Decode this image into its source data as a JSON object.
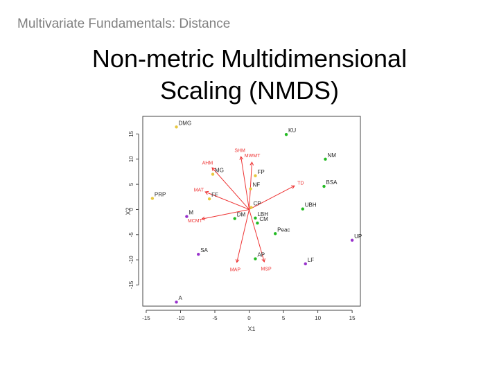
{
  "slide": {
    "header": "Multivariate Fundamentals: Distance",
    "title_lines": [
      "Non-metric Multidimensional",
      "Scaling (NMDS)"
    ]
  },
  "chart_data": {
    "type": "scatter",
    "xlabel": "X1",
    "ylabel": "X2",
    "xlim": [
      -15.5,
      16.2
    ],
    "ylim": [
      -19.2,
      18.5
    ],
    "xticks": [
      -15,
      -10,
      -5,
      0,
      5,
      10,
      15
    ],
    "yticks": [
      15,
      10,
      5,
      0,
      -5,
      -10,
      -15
    ],
    "grid": false,
    "colors": {
      "green": "#22bb22",
      "purple": "#9933cc",
      "yellow": "#e8c840",
      "arrow": "#ee3333",
      "axis": "#444444"
    },
    "points": [
      {
        "label": "DMG",
        "x": -10.6,
        "y": 16.4,
        "color": "yellow"
      },
      {
        "label": "KU",
        "x": 5.4,
        "y": 14.9,
        "color": "green"
      },
      {
        "label": "NM",
        "x": 11.1,
        "y": 10.0,
        "color": "green"
      },
      {
        "label": "MG",
        "x": -5.3,
        "y": 7.0,
        "color": "yellow"
      },
      {
        "label": "FP",
        "x": 0.9,
        "y": 6.7,
        "color": "yellow"
      },
      {
        "label": "NF",
        "x": 0.2,
        "y": 4.1,
        "color": "yellow"
      },
      {
        "label": "BSA",
        "x": 10.9,
        "y": 4.6,
        "color": "green"
      },
      {
        "label": "PRP",
        "x": -14.1,
        "y": 2.2,
        "color": "yellow"
      },
      {
        "label": "FF",
        "x": -5.8,
        "y": 2.1,
        "color": "yellow"
      },
      {
        "label": "CP",
        "x": 0.3,
        "y": 0.4,
        "color": "yellow"
      },
      {
        "label": "UBH",
        "x": 7.8,
        "y": 0.1,
        "color": "green"
      },
      {
        "label": "M",
        "x": -9.1,
        "y": -1.4,
        "color": "purple"
      },
      {
        "label": "DM",
        "x": -2.1,
        "y": -1.8,
        "color": "green"
      },
      {
        "label": "LBH",
        "x": 0.9,
        "y": -1.7,
        "color": "green"
      },
      {
        "label": "CM",
        "x": 1.2,
        "y": -2.7,
        "color": "green"
      },
      {
        "label": "Peac",
        "x": 3.8,
        "y": -4.8,
        "color": "green"
      },
      {
        "label": "UP",
        "x": 15.0,
        "y": -6.1,
        "color": "purple"
      },
      {
        "label": "SA",
        "x": -7.4,
        "y": -8.9,
        "color": "purple"
      },
      {
        "label": "AP",
        "x": 0.9,
        "y": -9.8,
        "color": "green"
      },
      {
        "label": "LF",
        "x": 8.2,
        "y": -10.8,
        "color": "purple"
      },
      {
        "label": "A",
        "x": -10.6,
        "y": -18.4,
        "color": "purple"
      }
    ],
    "arrows": [
      {
        "label": "SHM",
        "x": -1.2,
        "y": 10.5
      },
      {
        "label": "MWMT",
        "x": 0.4,
        "y": 9.4
      },
      {
        "label": "AHM",
        "x": -5.4,
        "y": 8.3
      },
      {
        "label": "TD",
        "x": 6.6,
        "y": 4.7
      },
      {
        "label": "MAT",
        "x": -6.4,
        "y": 3.5
      },
      {
        "label": "MCMT",
        "x": -6.9,
        "y": -1.9
      },
      {
        "label": "MAP",
        "x": -1.8,
        "y": -10.5
      },
      {
        "label": "MSP",
        "x": 2.2,
        "y": -10.4
      }
    ]
  }
}
